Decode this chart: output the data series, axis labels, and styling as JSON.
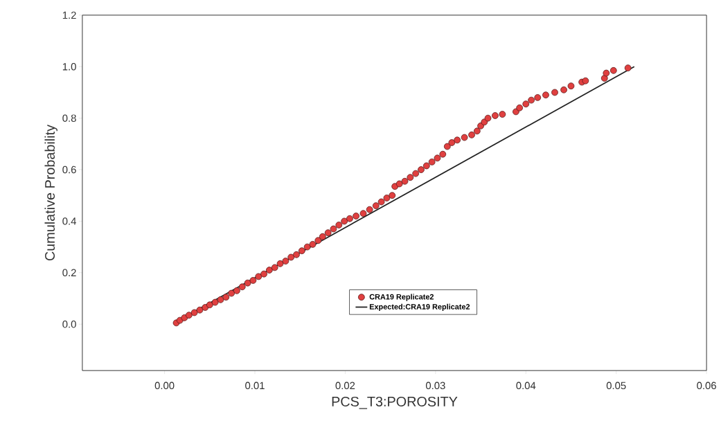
{
  "chart_data": {
    "type": "scatter",
    "xlabel": "PCS_T3:POROSITY",
    "ylabel": "Cumulative Probability",
    "xlim": [
      -0.0091,
      0.06
    ],
    "ylim": [
      -0.18,
      1.2
    ],
    "xticks": [
      {
        "value": 0,
        "label": "0.00"
      },
      {
        "value": 0.01,
        "label": "0.01"
      },
      {
        "value": 0.02,
        "label": "0.02"
      },
      {
        "value": 0.03,
        "label": "0.03"
      },
      {
        "value": 0.04,
        "label": "0.04"
      },
      {
        "value": 0.05,
        "label": "0.05"
      },
      {
        "value": 0.06,
        "label": "0.06"
      }
    ],
    "yticks": [
      {
        "value": 0,
        "label": "0.0"
      },
      {
        "value": 0.2,
        "label": "0.2"
      },
      {
        "value": 0.4,
        "label": "0.4"
      },
      {
        "value": 0.6,
        "label": "0.6"
      },
      {
        "value": 0.8,
        "label": "0.8"
      },
      {
        "value": 1.0,
        "label": "1.0"
      },
      {
        "value": 1.2,
        "label": "1.2"
      }
    ],
    "legend": "bottom",
    "series": [
      {
        "name": "CRA19 Replicate2",
        "marker": "circle",
        "color": "#e04040",
        "x": [
          0.0013,
          0.0017,
          0.0022,
          0.0027,
          0.0033,
          0.0039,
          0.0045,
          0.005,
          0.0056,
          0.0062,
          0.0068,
          0.0074,
          0.008,
          0.0086,
          0.0092,
          0.0098,
          0.0104,
          0.011,
          0.0116,
          0.0122,
          0.0128,
          0.0134,
          0.014,
          0.0146,
          0.0152,
          0.0158,
          0.0164,
          0.017,
          0.0175,
          0.0181,
          0.0187,
          0.0193,
          0.0199,
          0.0205,
          0.0212,
          0.022,
          0.0227,
          0.0234,
          0.024,
          0.0246,
          0.0252,
          0.0255,
          0.026,
          0.0266,
          0.0272,
          0.0278,
          0.0284,
          0.029,
          0.0296,
          0.0302,
          0.0308,
          0.0313,
          0.0318,
          0.0324,
          0.0332,
          0.034,
          0.0346,
          0.035,
          0.0354,
          0.0358,
          0.0366,
          0.0374,
          0.0389,
          0.0393,
          0.04,
          0.0406,
          0.0413,
          0.0422,
          0.0432,
          0.0442,
          0.045,
          0.0462,
          0.0466,
          0.0487,
          0.0489,
          0.0497,
          0.0513
        ],
        "values": [
          0.005,
          0.015,
          0.025,
          0.035,
          0.045,
          0.055,
          0.065,
          0.075,
          0.085,
          0.095,
          0.105,
          0.12,
          0.13,
          0.145,
          0.16,
          0.17,
          0.185,
          0.195,
          0.21,
          0.22,
          0.235,
          0.245,
          0.26,
          0.27,
          0.285,
          0.3,
          0.31,
          0.325,
          0.34,
          0.355,
          0.37,
          0.385,
          0.4,
          0.41,
          0.42,
          0.43,
          0.445,
          0.46,
          0.475,
          0.49,
          0.5,
          0.535,
          0.545,
          0.555,
          0.57,
          0.585,
          0.6,
          0.615,
          0.63,
          0.645,
          0.66,
          0.69,
          0.705,
          0.715,
          0.725,
          0.735,
          0.75,
          0.77,
          0.785,
          0.8,
          0.81,
          0.815,
          0.825,
          0.84,
          0.855,
          0.87,
          0.88,
          0.89,
          0.9,
          0.91,
          0.925,
          0.94,
          0.945,
          0.955,
          0.975,
          0.985,
          0.995
        ]
      },
      {
        "name": "Expected:CRA19 Replicate2",
        "type": "line",
        "marker": "none",
        "color": "#222222",
        "x": [
          0.0013,
          0.052
        ],
        "values": [
          0.01,
          1.0
        ]
      }
    ]
  }
}
